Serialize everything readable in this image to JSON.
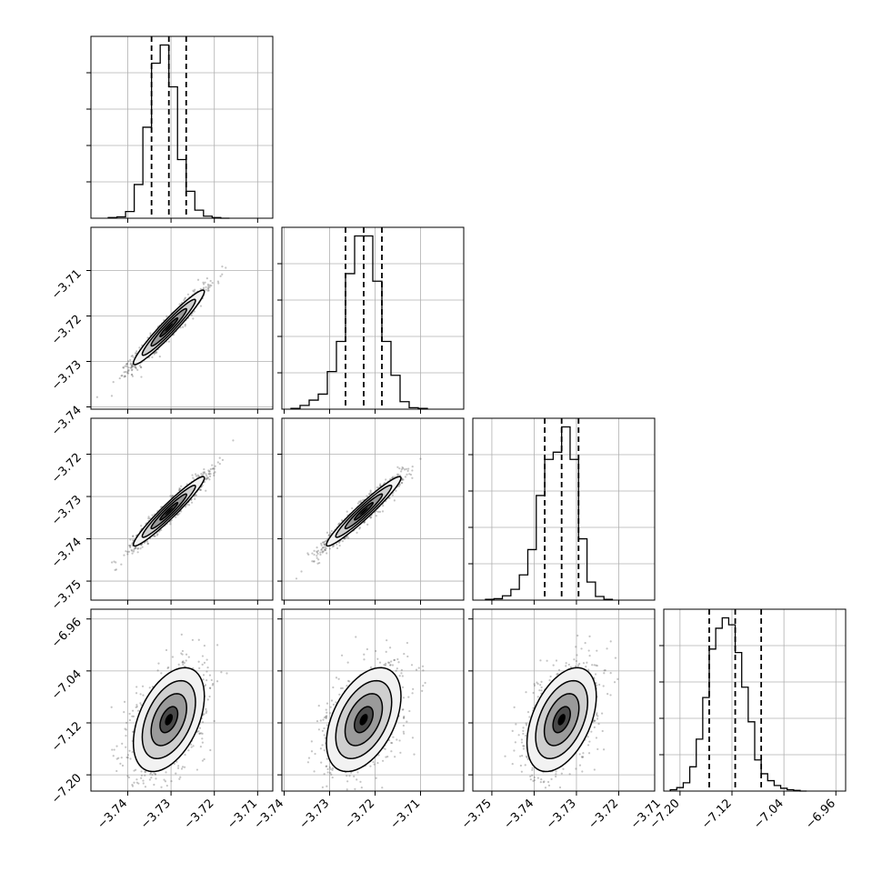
{
  "chart_data": {
    "type": "corner",
    "parameters": 4,
    "grid": true,
    "panel_tick_labels": {
      "p1": [
        "−3.74",
        "−3.73",
        "−3.72",
        "−3.71"
      ],
      "p2": [
        "−3.74",
        "−3.73",
        "−3.72",
        "−3.71"
      ],
      "p3": [
        "−3.75",
        "−3.74",
        "−3.73",
        "−3.72",
        "−3.71"
      ],
      "p4": [
        "−7.20",
        "−7.12",
        "−7.04",
        "−6.96"
      ]
    },
    "ranges": {
      "p1": [
        -3.7485,
        -3.7065
      ],
      "p2": [
        -3.7405,
        -3.7005
      ],
      "p3": [
        -3.7545,
        -3.7115
      ],
      "p4": [
        -7.225,
        -6.945
      ]
    },
    "tick_values": {
      "p1": [
        -3.74,
        -3.73,
        -3.72,
        -3.71
      ],
      "p2": [
        -3.74,
        -3.73,
        -3.72,
        -3.71
      ],
      "p3": [
        -3.75,
        -3.74,
        -3.73,
        -3.72,
        -3.71
      ],
      "p4": [
        -7.2,
        -7.12,
        -7.04,
        -6.96
      ]
    },
    "quantiles": {
      "p1": [
        -3.7345,
        -3.7305,
        -3.7265
      ],
      "p2": [
        -3.7265,
        -3.7225,
        -3.7185
      ],
      "p3": [
        -3.7375,
        -3.7335,
        -3.7295
      ],
      "p4": [
        -7.155,
        -7.115,
        -7.075
      ]
    },
    "histograms": {
      "p1": {
        "edges": [
          -3.7445,
          -3.7425,
          -3.7405,
          -3.7385,
          -3.7365,
          -3.7345,
          -3.7325,
          -3.7305,
          -3.7285,
          -3.7265,
          -3.7245,
          -3.7225,
          -3.7205,
          -3.7185,
          -3.7165
        ],
        "counts": [
          1,
          2,
          10,
          50,
          135,
          230,
          257,
          195,
          87,
          40,
          12,
          3,
          1,
          0
        ]
      },
      "p2": {
        "edges": [
          -3.7385,
          -3.7365,
          -3.7345,
          -3.7325,
          -3.7305,
          -3.7285,
          -3.7265,
          -3.7245,
          -3.7225,
          -3.7205,
          -3.7185,
          -3.7165,
          -3.7145,
          -3.7125,
          -3.7105,
          -3.7085
        ],
        "counts": [
          1,
          5,
          12,
          20,
          50,
          90,
          180,
          230,
          230,
          170,
          90,
          45,
          10,
          2,
          1
        ]
      },
      "p3": {
        "edges": [
          -3.7515,
          -3.7495,
          -3.7475,
          -3.7455,
          -3.7435,
          -3.7415,
          -3.7395,
          -3.7375,
          -3.7355,
          -3.7335,
          -3.7315,
          -3.7295,
          -3.7275,
          -3.7255,
          -3.7235,
          -3.7215
        ],
        "counts": [
          1,
          2,
          6,
          15,
          35,
          70,
          145,
          195,
          205,
          240,
          195,
          85,
          25,
          5,
          1
        ]
      },
      "p4": {
        "edges": [
          -7.215,
          -7.205,
          -7.195,
          -7.185,
          -7.175,
          -7.165,
          -7.155,
          -7.145,
          -7.135,
          -7.125,
          -7.115,
          -7.105,
          -7.095,
          -7.085,
          -7.075,
          -7.065,
          -7.055,
          -7.045,
          -7.035,
          -7.025,
          -7.015,
          -7.005
        ],
        "counts": [
          2,
          5,
          12,
          35,
          75,
          135,
          205,
          235,
          250,
          240,
          200,
          150,
          100,
          45,
          25,
          15,
          8,
          4,
          2,
          1,
          0
        ]
      }
    },
    "pairs": [
      {
        "x": "p1",
        "y": "p2",
        "mean": [
          -3.7305,
          -3.7225
        ],
        "sd": [
          0.0041,
          0.0041
        ],
        "rho": 0.96
      },
      {
        "x": "p1",
        "y": "p3",
        "mean": [
          -3.7305,
          -3.7335
        ],
        "sd": [
          0.0041,
          0.0041
        ],
        "rho": 0.96
      },
      {
        "x": "p2",
        "y": "p3",
        "mean": [
          -3.7225,
          -3.7335
        ],
        "sd": [
          0.0041,
          0.0041
        ],
        "rho": 0.96
      },
      {
        "x": "p1",
        "y": "p4",
        "mean": [
          -3.7305,
          -7.115
        ],
        "sd": [
          0.0041,
          0.04
        ],
        "rho": 0.45
      },
      {
        "x": "p2",
        "y": "p4",
        "mean": [
          -3.7225,
          -7.115
        ],
        "sd": [
          0.0041,
          0.04
        ],
        "rho": 0.45
      },
      {
        "x": "p3",
        "y": "p4",
        "mean": [
          -3.7335,
          -7.115
        ],
        "sd": [
          0.0041,
          0.04
        ],
        "rho": 0.45
      }
    ],
    "contour_levels_sigma": [
      0.5,
      1.0,
      1.5,
      2.0
    ]
  }
}
